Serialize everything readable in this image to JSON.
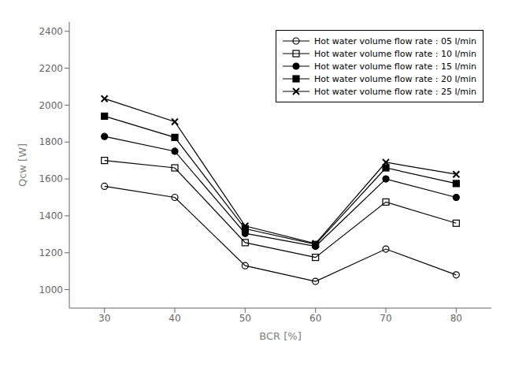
{
  "chart_data": {
    "type": "line",
    "x": [
      30,
      40,
      50,
      60,
      70,
      80
    ],
    "series": [
      {
        "name": "Hot water volume flow rate : 05 l/min",
        "color": "#000000",
        "marker": "circle-open",
        "values": [
          1560,
          1500,
          1130,
          1045,
          1220,
          1080
        ]
      },
      {
        "name": "Hot water volume flow rate : 10 l/min",
        "color": "#000000",
        "marker": "square-open",
        "values": [
          1700,
          1660,
          1255,
          1175,
          1475,
          1360
        ]
      },
      {
        "name": "Hot water volume flow rate : 15 l/min",
        "color": "#000000",
        "marker": "circle",
        "values": [
          1830,
          1750,
          1305,
          1235,
          1600,
          1500
        ]
      },
      {
        "name": "Hot water volume flow rate : 20 l/min",
        "color": "#000000",
        "marker": "square",
        "values": [
          1940,
          1825,
          1330,
          1245,
          1660,
          1575
        ]
      },
      {
        "name": "Hot water volume flow rate : 25 l/min",
        "color": "#000000",
        "marker": "x",
        "values": [
          2035,
          1910,
          1345,
          1250,
          1690,
          1625
        ]
      }
    ],
    "xlabel": "BCR [%]",
    "ylabel": "Qcw [W]",
    "xlim": [
      25,
      85
    ],
    "ylim": [
      900,
      2450
    ],
    "xticks": [
      30,
      40,
      50,
      60,
      70,
      80
    ],
    "yticks": [
      1000,
      1200,
      1400,
      1600,
      1800,
      2000,
      2200,
      2400
    ],
    "grid": false,
    "legend": "upper right"
  }
}
